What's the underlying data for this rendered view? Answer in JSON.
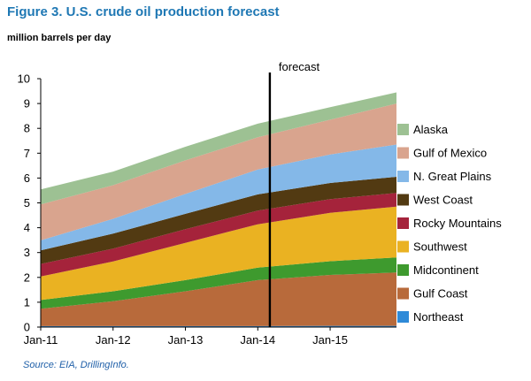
{
  "figure": {
    "title": "Figure 3. U.S. crude oil production forecast",
    "units": "million barrels per day",
    "source": "Source: EIA, DrillingInfo."
  },
  "chart_data": {
    "type": "area",
    "stacked": true,
    "title": "Figure 3. U.S. crude oil production forecast",
    "ylabel": "million barrels per day",
    "xlabel": "",
    "ylim": [
      0,
      10
    ],
    "yticks": [
      0,
      1,
      2,
      3,
      4,
      5,
      6,
      7,
      8,
      9,
      10
    ],
    "xticks": [
      "Jan-11",
      "Jan-12",
      "Jan-13",
      "Jan-14",
      "Jan-15"
    ],
    "x_start": "Jan-11",
    "x_end": "Dec-15",
    "x_step": "year",
    "x": [
      "Jan-11",
      "Jan-12",
      "Jan-13",
      "Jan-14",
      "Jan-15",
      "Dec-15"
    ],
    "grid": false,
    "legend_position": "right",
    "annotation": {
      "text": "forecast",
      "at": "Mar-14"
    },
    "series": [
      {
        "name": "Northeast",
        "color": "#2e8ad8",
        "values": [
          0.04,
          0.04,
          0.04,
          0.04,
          0.05,
          0.05
        ]
      },
      {
        "name": "Gulf Coast",
        "color": "#b86a3b",
        "values": [
          0.7,
          1.0,
          1.4,
          1.85,
          2.05,
          2.15
        ]
      },
      {
        "name": "Midcontinent",
        "color": "#3e9a2e",
        "values": [
          0.35,
          0.4,
          0.45,
          0.5,
          0.55,
          0.6
        ]
      },
      {
        "name": "Southwest",
        "color": "#eab222",
        "values": [
          0.95,
          1.2,
          1.5,
          1.75,
          1.95,
          2.05
        ]
      },
      {
        "name": "Rocky Mountains",
        "color": "#a5233b",
        "values": [
          0.5,
          0.52,
          0.55,
          0.55,
          0.55,
          0.55
        ]
      },
      {
        "name": "West Coast",
        "color": "#523a12",
        "values": [
          0.55,
          0.6,
          0.62,
          0.65,
          0.65,
          0.65
        ]
      },
      {
        "name": "N. Great Plains",
        "color": "#84b8e8",
        "values": [
          0.4,
          0.6,
          0.8,
          1.0,
          1.15,
          1.3
        ]
      },
      {
        "name": "Gulf of Mexico",
        "color": "#d9a48e",
        "values": [
          1.45,
          1.35,
          1.35,
          1.3,
          1.4,
          1.65
        ]
      },
      {
        "name": "Alaska",
        "color": "#9dc193",
        "values": [
          0.6,
          0.55,
          0.55,
          0.55,
          0.5,
          0.45
        ]
      }
    ]
  }
}
